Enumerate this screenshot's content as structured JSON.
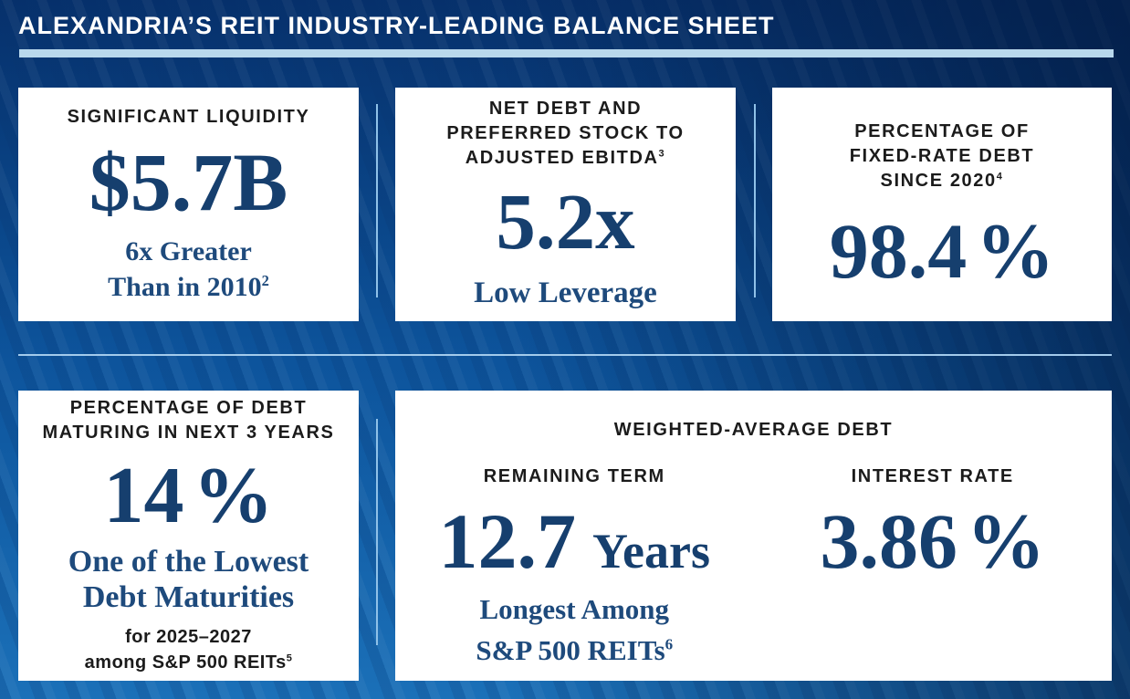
{
  "header": {
    "title": "ALEXANDRIA’S REIT INDUSTRY-LEADING BALANCE SHEET"
  },
  "colors": {
    "background_top": "#06306b",
    "background_bottom_left": "#1b70b8",
    "background_top_right": "#02235c",
    "title_text": "#ffffff",
    "title_bar": "#b9d8ec",
    "card_background": "#ffffff",
    "label_text": "#1b1b1b",
    "value_navy": "#163f6e",
    "sub_navy": "#1e4a7c",
    "divider_light_blue": "#8fc1e8"
  },
  "cards": {
    "liquidity": {
      "label": "SIGNIFICANT LIQUIDITY",
      "value": "$5.7B",
      "sub1": "6x Greater",
      "sub2": "Than in 2010",
      "sub2_sup": "2"
    },
    "leverage": {
      "label1": "NET DEBT AND",
      "label2": "PREFERRED STOCK TO",
      "label3": "ADJUSTED EBITDA",
      "label3_sup": "3",
      "value": "5.2x",
      "sub": "Low Leverage"
    },
    "fixed_rate": {
      "label1": "PERCENTAGE OF",
      "label2": "FIXED-RATE DEBT",
      "label3": "SINCE 2020",
      "label3_sup": "4",
      "value": "98.4",
      "suffix": "%"
    },
    "maturing": {
      "label1": "PERCENTAGE OF DEBT",
      "label2": "MATURING IN NEXT 3 YEARS",
      "value": "14",
      "suffix": "%",
      "sub1": "One of the Lowest",
      "sub2": "Debt Maturities",
      "note1": "for 2025–2027",
      "note2": "among S&P 500 REITs",
      "note2_sup": "5"
    },
    "weighted": {
      "label": "WEIGHTED-AVERAGE DEBT",
      "remaining": {
        "label": "REMAINING TERM",
        "value": "12.7",
        "unit": "Years",
        "sub1": "Longest Among",
        "sub2": "S&P 500 REITs",
        "sub2_sup": "6"
      },
      "interest": {
        "label": "INTEREST RATE",
        "value": "3.86",
        "suffix": "%"
      }
    }
  }
}
